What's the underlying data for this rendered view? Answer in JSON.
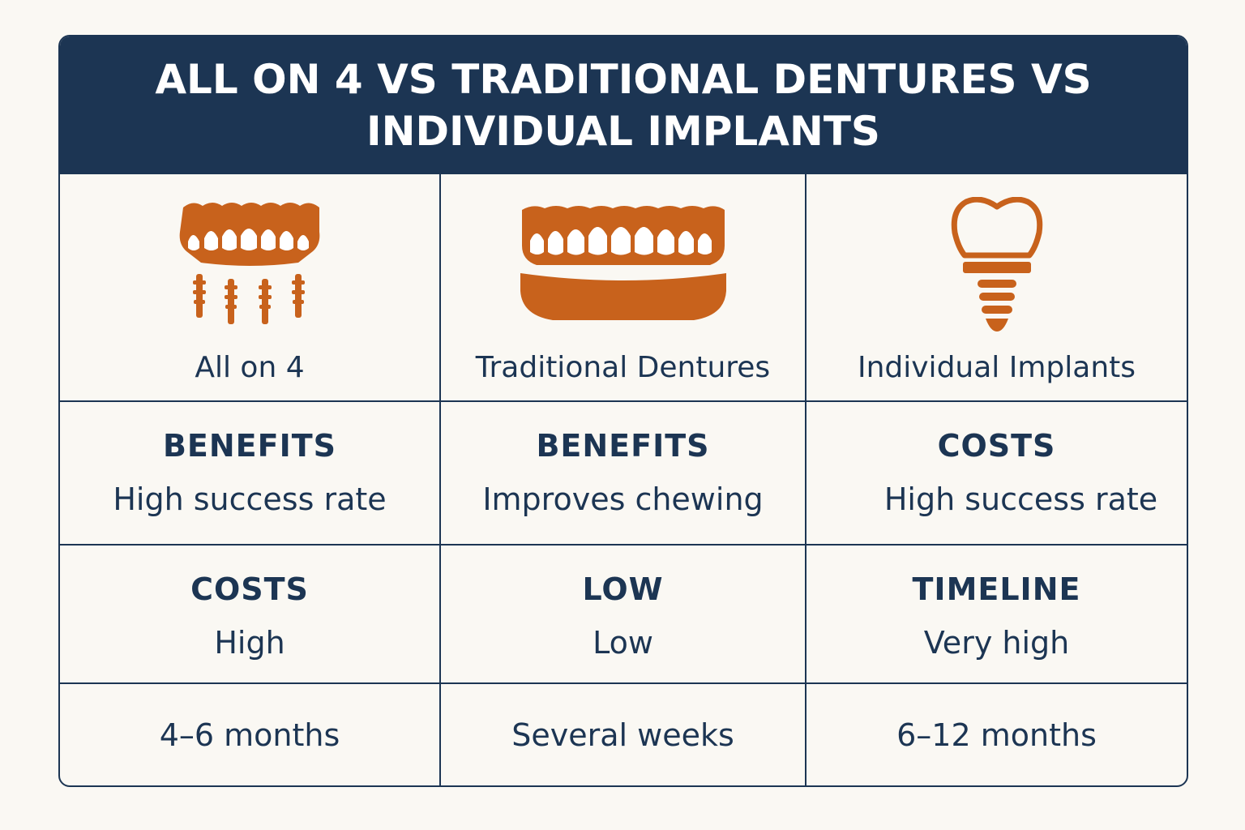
{
  "title": "ALL ON 4 VS TRADITIONAL DENTURES VS INDIVIDUAL IMPLANTS",
  "colors": {
    "navy": "#1c3553",
    "accent": "#c8621c",
    "background": "#faf8f3"
  },
  "options": [
    {
      "icon": "all-on-4-implant-icon",
      "name": "All on 4"
    },
    {
      "icon": "denture-icon",
      "name": "Traditional Dentures"
    },
    {
      "icon": "single-implant-icon",
      "name": "Individual Implants"
    }
  ],
  "row1": [
    {
      "heading": "BENEFITS",
      "value": "High success rate"
    },
    {
      "heading": "BENEFITS",
      "value": "Improves chewing"
    },
    {
      "heading": "COSTS",
      "value": "High success rate"
    }
  ],
  "row2": [
    {
      "heading": "COSTS",
      "value": "High"
    },
    {
      "heading": "LOW",
      "value": "Low"
    },
    {
      "heading": "TIMELINE",
      "value": "Very high"
    }
  ],
  "row3": [
    {
      "value": "4–6 months"
    },
    {
      "value": "Several weeks"
    },
    {
      "value": "6–12 months"
    }
  ]
}
